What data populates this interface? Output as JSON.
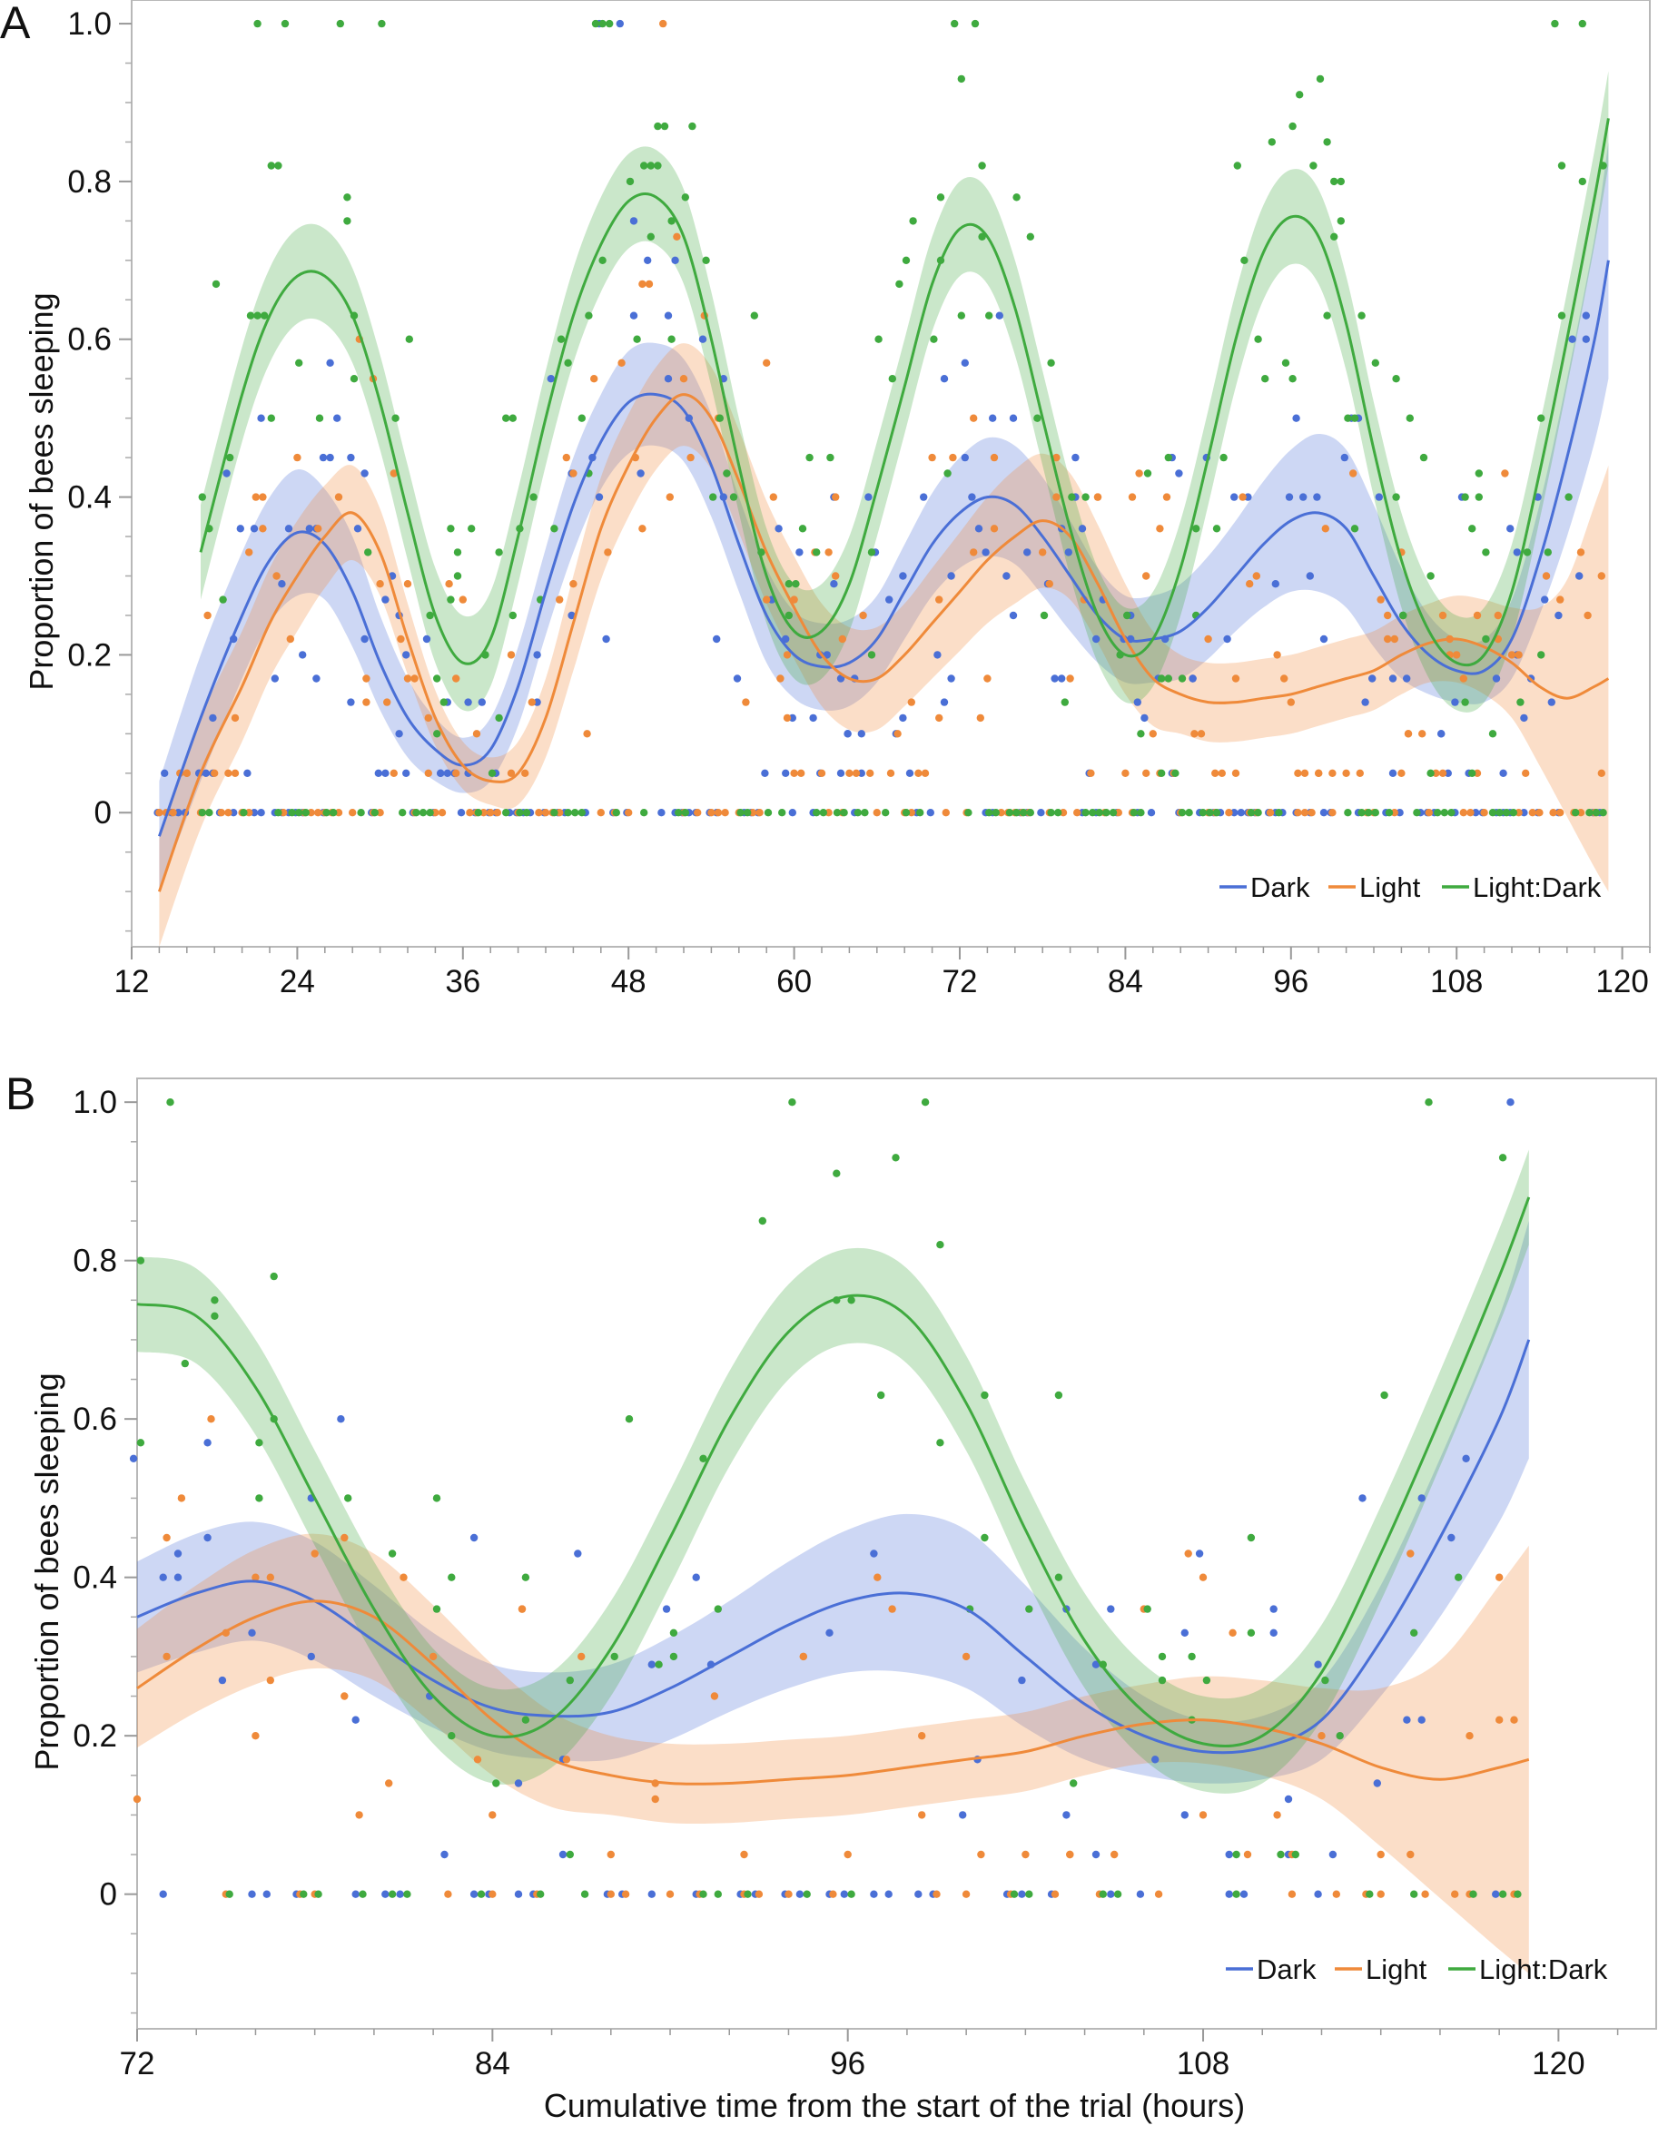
{
  "figure": {
    "panel_labels": [
      "A",
      "B"
    ],
    "xlabel": "Cumulative time from the start of the trial (hours)",
    "ylabel": "Proportion of bees sleeping",
    "legend": [
      {
        "name": "Dark",
        "color": "#4a6fd6"
      },
      {
        "name": "Light",
        "color": "#ef8a3a"
      },
      {
        "name": "Light:Dark",
        "color": "#3faa3f"
      }
    ]
  },
  "chart_data": [
    {
      "type": "scatter",
      "panel": "A",
      "title": "",
      "xlabel": "",
      "ylabel": "Proportion of bees sleeping",
      "xlim": [
        12,
        122
      ],
      "ylim": [
        -0.17,
        1.03
      ],
      "x_ticks": [
        12,
        24,
        36,
        48,
        60,
        72,
        84,
        96,
        108,
        120
      ],
      "y_ticks": [
        0,
        0.2,
        0.4,
        0.6,
        0.8,
        1.0
      ],
      "y_tick_labels": [
        "0",
        "0.2",
        "0.4",
        "0.6",
        "0.8",
        "1.0"
      ],
      "legend_position": "bottom-right",
      "series": [
        {
          "name": "Dark",
          "color": "#4a6fd6",
          "fit_x": [
            14,
            17,
            20,
            22,
            24,
            26,
            28,
            30,
            32,
            34,
            36,
            38,
            40,
            42,
            44,
            46,
            48,
            50,
            52,
            54,
            56,
            58,
            60,
            62,
            64,
            66,
            68,
            70,
            72,
            74,
            76,
            78,
            80,
            82,
            84,
            86,
            88,
            90,
            92,
            94,
            96,
            98,
            100,
            102,
            104,
            106,
            108,
            110,
            112,
            114,
            116,
            118,
            119
          ],
          "fit_y": [
            -0.03,
            0.12,
            0.25,
            0.32,
            0.355,
            0.34,
            0.28,
            0.19,
            0.12,
            0.08,
            0.06,
            0.08,
            0.16,
            0.28,
            0.39,
            0.47,
            0.52,
            0.53,
            0.51,
            0.44,
            0.34,
            0.25,
            0.2,
            0.185,
            0.19,
            0.22,
            0.28,
            0.34,
            0.38,
            0.4,
            0.39,
            0.35,
            0.3,
            0.25,
            0.22,
            0.22,
            0.23,
            0.26,
            0.3,
            0.34,
            0.37,
            0.38,
            0.36,
            0.3,
            0.24,
            0.2,
            0.18,
            0.18,
            0.22,
            0.32,
            0.45,
            0.6,
            0.7
          ],
          "fit_ci": [
            0.07,
            0.08,
            0.08,
            0.08,
            0.08,
            0.07,
            0.07,
            0.06,
            0.05,
            0.04,
            0.035,
            0.04,
            0.05,
            0.055,
            0.06,
            0.06,
            0.065,
            0.065,
            0.065,
            0.065,
            0.06,
            0.06,
            0.055,
            0.055,
            0.055,
            0.055,
            0.06,
            0.065,
            0.07,
            0.075,
            0.075,
            0.075,
            0.07,
            0.06,
            0.055,
            0.055,
            0.06,
            0.065,
            0.07,
            0.08,
            0.09,
            0.1,
            0.1,
            0.09,
            0.07,
            0.05,
            0.04,
            0.04,
            0.05,
            0.07,
            0.1,
            0.13,
            0.15
          ]
        },
        {
          "name": "Light",
          "color": "#ef8a3a",
          "fit_x": [
            14,
            17,
            20,
            22,
            24,
            26,
            28,
            30,
            32,
            34,
            36,
            38,
            40,
            42,
            44,
            46,
            48,
            50,
            52,
            54,
            56,
            58,
            60,
            62,
            64,
            66,
            68,
            70,
            72,
            74,
            76,
            78,
            80,
            82,
            84,
            86,
            88,
            90,
            92,
            94,
            96,
            98,
            100,
            102,
            104,
            106,
            108,
            110,
            112,
            114,
            116,
            118,
            119
          ],
          "fit_y": [
            -0.1,
            0.05,
            0.16,
            0.24,
            0.3,
            0.35,
            0.38,
            0.33,
            0.22,
            0.12,
            0.06,
            0.04,
            0.05,
            0.12,
            0.24,
            0.36,
            0.44,
            0.5,
            0.53,
            0.5,
            0.42,
            0.33,
            0.26,
            0.2,
            0.17,
            0.17,
            0.2,
            0.24,
            0.28,
            0.32,
            0.35,
            0.37,
            0.35,
            0.29,
            0.22,
            0.17,
            0.15,
            0.14,
            0.14,
            0.145,
            0.15,
            0.16,
            0.17,
            0.18,
            0.2,
            0.215,
            0.22,
            0.21,
            0.19,
            0.16,
            0.145,
            0.16,
            0.17
          ],
          "fit_ci": [
            0.07,
            0.07,
            0.07,
            0.07,
            0.07,
            0.065,
            0.06,
            0.055,
            0.045,
            0.035,
            0.03,
            0.03,
            0.04,
            0.05,
            0.06,
            0.065,
            0.065,
            0.065,
            0.065,
            0.065,
            0.065,
            0.065,
            0.065,
            0.065,
            0.065,
            0.065,
            0.065,
            0.07,
            0.075,
            0.08,
            0.085,
            0.085,
            0.08,
            0.075,
            0.07,
            0.06,
            0.05,
            0.05,
            0.05,
            0.05,
            0.05,
            0.05,
            0.05,
            0.05,
            0.05,
            0.05,
            0.055,
            0.06,
            0.07,
            0.1,
            0.15,
            0.23,
            0.27
          ]
        },
        {
          "name": "Light:Dark",
          "color": "#3faa3f",
          "fit_x": [
            17,
            20,
            22,
            24,
            26,
            28,
            30,
            32,
            34,
            36,
            38,
            40,
            42,
            44,
            46,
            48,
            50,
            52,
            54,
            56,
            58,
            60,
            62,
            64,
            66,
            68,
            70,
            72,
            74,
            76,
            78,
            80,
            82,
            84,
            86,
            88,
            90,
            92,
            94,
            96,
            98,
            100,
            102,
            104,
            106,
            108,
            110,
            112,
            114,
            116,
            118,
            119
          ],
          "fit_y": [
            0.33,
            0.53,
            0.63,
            0.68,
            0.68,
            0.63,
            0.52,
            0.38,
            0.25,
            0.19,
            0.22,
            0.35,
            0.5,
            0.63,
            0.72,
            0.775,
            0.78,
            0.73,
            0.6,
            0.44,
            0.3,
            0.23,
            0.23,
            0.29,
            0.41,
            0.54,
            0.67,
            0.74,
            0.73,
            0.64,
            0.5,
            0.36,
            0.25,
            0.2,
            0.22,
            0.31,
            0.45,
            0.6,
            0.71,
            0.755,
            0.73,
            0.62,
            0.46,
            0.32,
            0.23,
            0.19,
            0.2,
            0.28,
            0.43,
            0.6,
            0.78,
            0.88
          ]
        }
      ]
    },
    {
      "type": "scatter",
      "panel": "B",
      "title": "",
      "xlabel": "Cumulative time from the start of the trial (hours)",
      "ylabel": "Proportion of bees sleeping",
      "xlim": [
        72,
        123.3
      ],
      "ylim": [
        -0.17,
        1.03
      ],
      "x_ticks": [
        72,
        84,
        96,
        108,
        120
      ],
      "y_ticks": [
        0,
        0.2,
        0.4,
        0.6,
        0.8,
        1.0
      ],
      "y_tick_labels": [
        "0",
        "0.2",
        "0.4",
        "0.6",
        "0.8",
        "1.0"
      ],
      "legend_position": "bottom-right",
      "series": [
        {
          "name": "Dark",
          "color": "#4a6fd6",
          "fit_x": [
            72,
            74,
            76,
            78,
            80,
            82,
            84,
            86,
            88,
            90,
            92,
            94,
            96,
            98,
            100,
            102,
            104,
            106,
            108,
            110,
            112,
            114,
            116,
            118,
            119
          ],
          "fit_y": [
            0.35,
            0.38,
            0.395,
            0.37,
            0.32,
            0.27,
            0.235,
            0.225,
            0.23,
            0.26,
            0.3,
            0.34,
            0.37,
            0.38,
            0.36,
            0.3,
            0.24,
            0.2,
            0.18,
            0.185,
            0.22,
            0.32,
            0.45,
            0.6,
            0.7
          ],
          "fit_ci": [
            0.07,
            0.075,
            0.075,
            0.075,
            0.07,
            0.06,
            0.055,
            0.055,
            0.06,
            0.065,
            0.07,
            0.08,
            0.09,
            0.1,
            0.1,
            0.09,
            0.07,
            0.05,
            0.04,
            0.04,
            0.05,
            0.07,
            0.1,
            0.13,
            0.15
          ]
        },
        {
          "name": "Light",
          "color": "#ef8a3a",
          "fit_x": [
            72,
            74,
            76,
            78,
            80,
            82,
            84,
            86,
            88,
            90,
            92,
            94,
            96,
            98,
            100,
            102,
            104,
            106,
            108,
            110,
            112,
            114,
            116,
            118,
            119
          ],
          "fit_y": [
            0.26,
            0.31,
            0.35,
            0.37,
            0.35,
            0.29,
            0.22,
            0.17,
            0.15,
            0.14,
            0.14,
            0.145,
            0.15,
            0.16,
            0.17,
            0.18,
            0.2,
            0.215,
            0.22,
            0.21,
            0.19,
            0.16,
            0.145,
            0.16,
            0.17
          ],
          "fit_ci": [
            0.075,
            0.08,
            0.085,
            0.085,
            0.08,
            0.075,
            0.07,
            0.06,
            0.05,
            0.05,
            0.05,
            0.05,
            0.05,
            0.05,
            0.05,
            0.05,
            0.05,
            0.05,
            0.055,
            0.06,
            0.07,
            0.1,
            0.15,
            0.23,
            0.27
          ]
        },
        {
          "name": "Light:Dark",
          "color": "#3faa3f",
          "fit_x": [
            72,
            74,
            76,
            78,
            80,
            82,
            84,
            86,
            88,
            90,
            92,
            94,
            96,
            98,
            100,
            102,
            104,
            106,
            108,
            110,
            112,
            114,
            116,
            118,
            119
          ],
          "fit_y": [
            0.745,
            0.73,
            0.64,
            0.5,
            0.36,
            0.25,
            0.2,
            0.22,
            0.31,
            0.45,
            0.6,
            0.71,
            0.755,
            0.73,
            0.62,
            0.46,
            0.32,
            0.23,
            0.19,
            0.2,
            0.28,
            0.43,
            0.6,
            0.78,
            0.88
          ]
        }
      ]
    }
  ]
}
